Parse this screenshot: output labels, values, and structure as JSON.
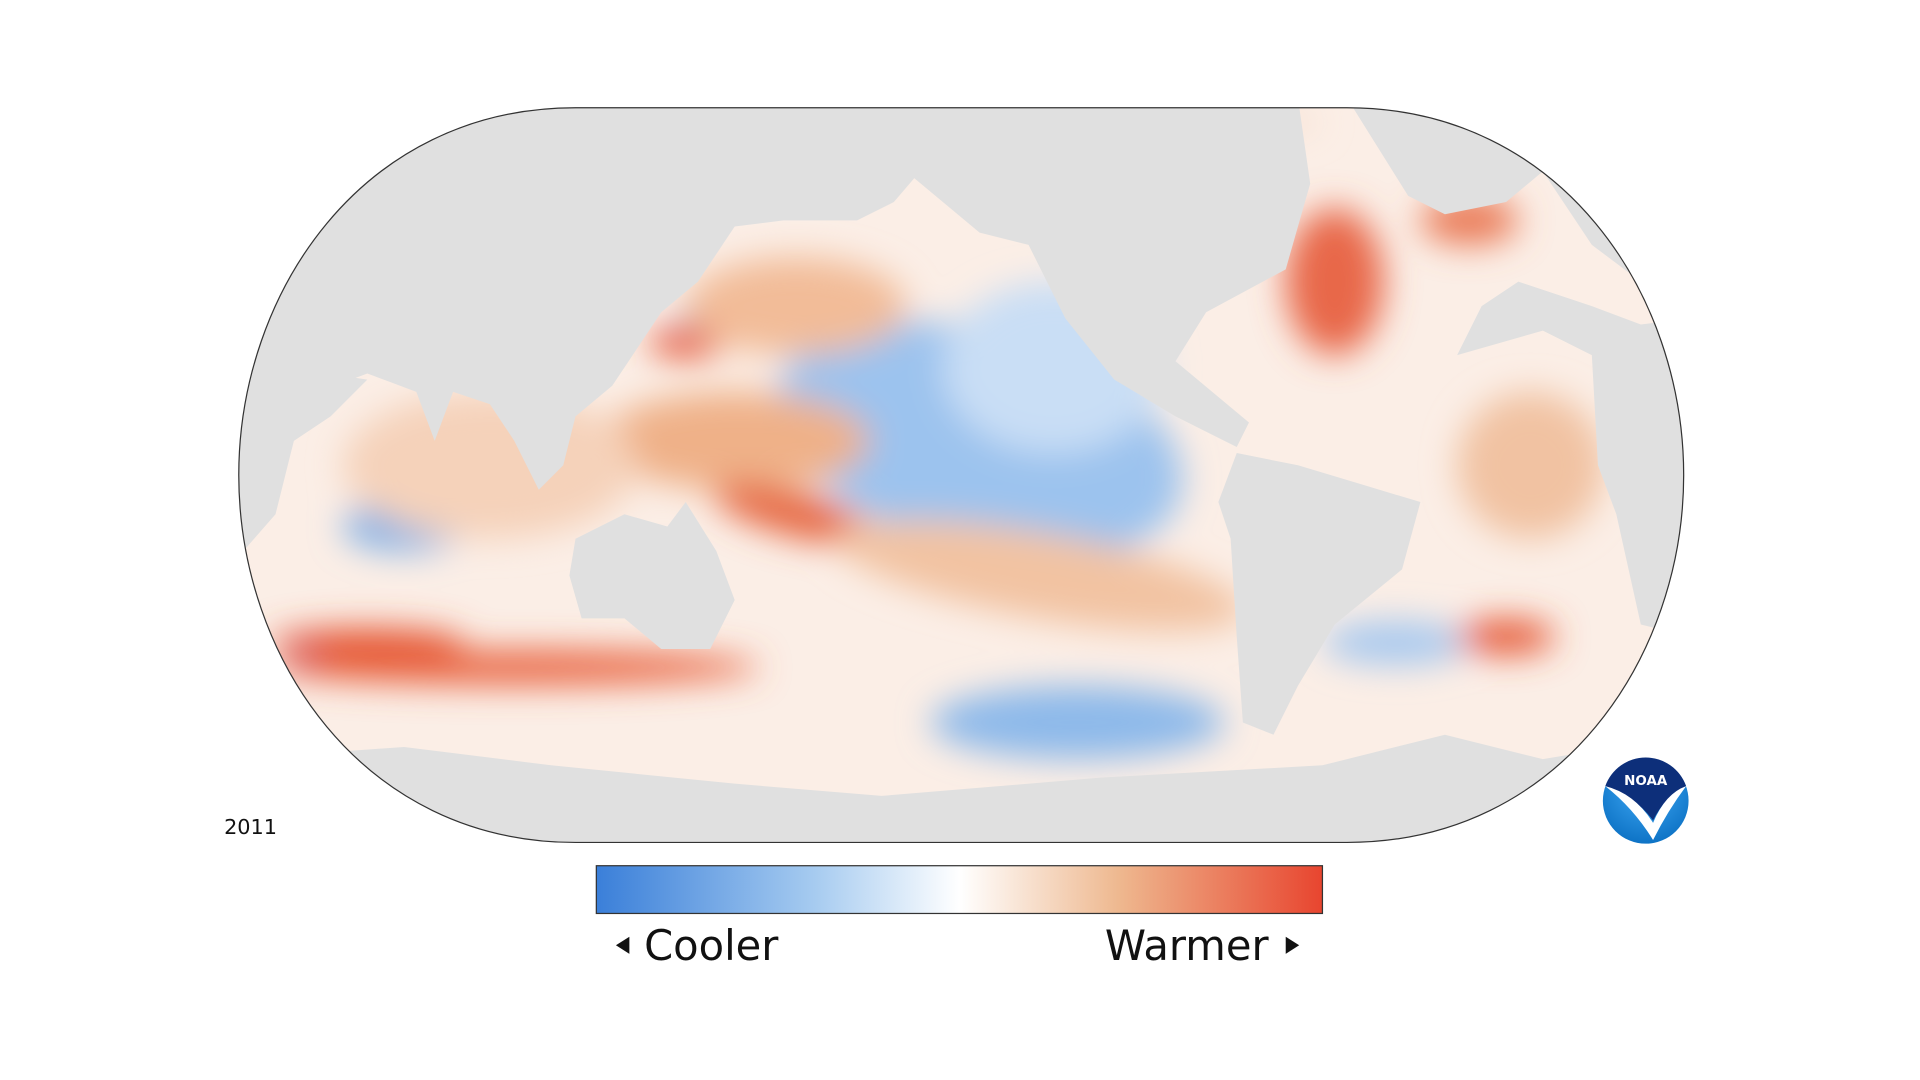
{
  "year": "2011",
  "legend": {
    "low": "Cooler",
    "high": "Warmer"
  },
  "logo": "NOAA"
}
